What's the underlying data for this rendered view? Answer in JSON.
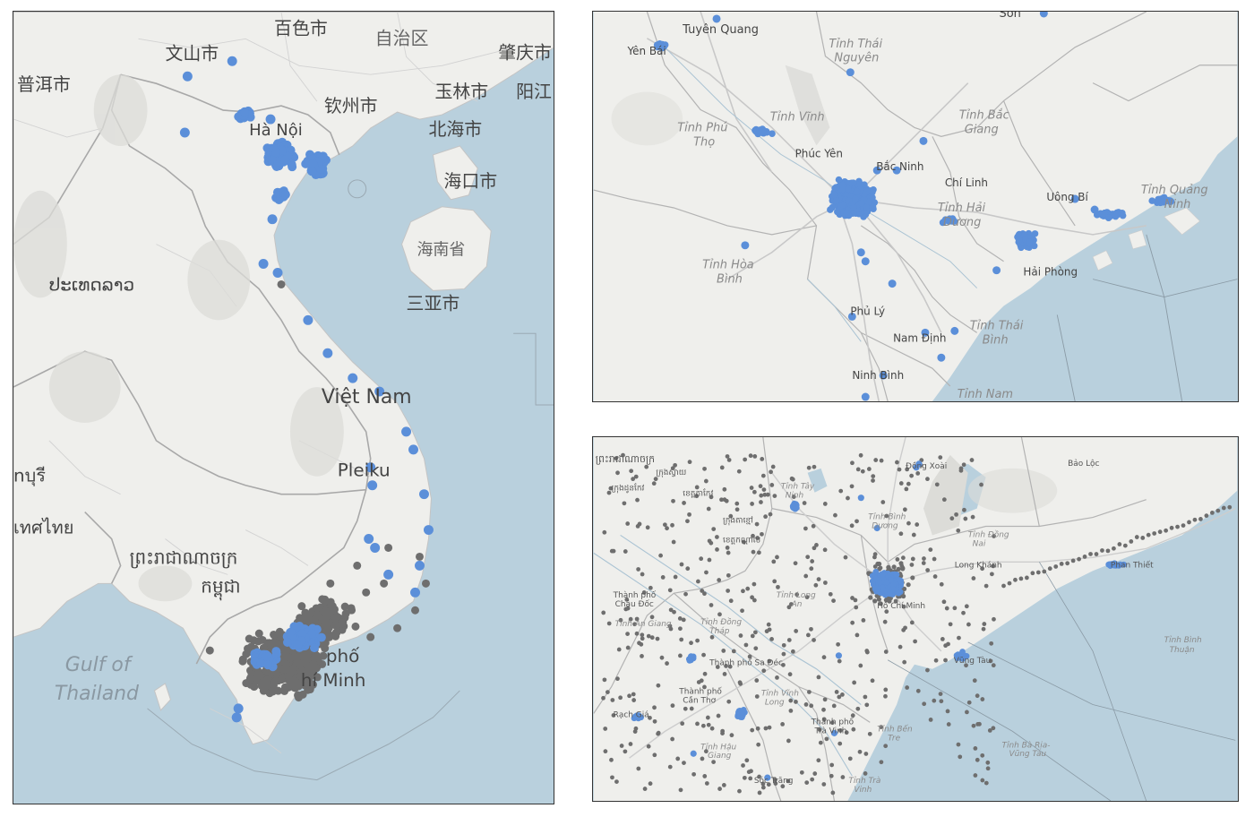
{
  "colors": {
    "water": "#b9d0dd",
    "land": "#efefec",
    "border": "#b8b8b8",
    "road": "#cfcfcf",
    "label": "#444444",
    "province_label": "#8a8a8a",
    "blue_points": "#5b8fd9",
    "grey_points": "#6e6e6e"
  },
  "panel_left": {
    "labels": {
      "baise": "百色市",
      "guangxi": "自治区",
      "wenshan": "文山市",
      "zhaoqing": "肇庆市",
      "puer": "普洱市",
      "hanoi": "Hà Nội",
      "qinzhou": "钦州市",
      "yulin": "玉林市",
      "yangjiang": "阳江",
      "beihai": "北海市",
      "haikou": "海口市",
      "hainan": "海南省",
      "sanya": "三亚市",
      "laos": "ປະເທດລາວ",
      "vietnam": "Việt Nam",
      "pleiku": "Pleiku",
      "buriram": "nบุรี",
      "thailand": "เทศไทย",
      "cambodia1": "ព្រះរាជាណាចក្រ",
      "cambodia2": "កម្ពុជា",
      "hcm_pho": "phố",
      "hcm_minh": "hí Minh",
      "gulf1": "Gulf of",
      "gulf2": "Thailand"
    }
  },
  "panel_top_right": {
    "labels": {
      "tuyen_quang": "Tuyên Quang",
      "son": "Sơn",
      "yen_bai": "Yên Bái",
      "thai_nguyen1": "Tỉnh Thái",
      "thai_nguyen2": "Nguyên",
      "phu_tho1": "Tỉnh Phú",
      "phu_tho2": "Thọ",
      "vinh_phuc": "Tỉnh Vĩnh",
      "phuc_yen": "Phúc Yên",
      "bac_ninh": "Bắc Ninh",
      "bac_giang1": "Tỉnh Bắc",
      "bac_giang2": "Giang",
      "chi_linh": "Chí Linh",
      "uong_bi": "Uông Bí",
      "quang_ninh1": "Tỉnh Quảng",
      "quang_ninh2": "Ninh",
      "hai_duong1": "Tỉnh Hải",
      "hai_duong2": "Dương",
      "hoa_binh1": "Tỉnh Hòa",
      "hoa_binh2": "Bình",
      "hai_phong": "Hải Phòng",
      "phu_ly": "Phủ Lý",
      "nam_dinh": "Nam Định",
      "thai_binh1": "Tỉnh Thái",
      "thai_binh2": "Bình",
      "ninh_binh": "Ninh Bình",
      "tinh_nam": "Tỉnh Nam"
    }
  },
  "panel_bottom_right": {
    "labels": {
      "khmer1": "ព្រះរាជាណាចក្រ",
      "khmer2": "ក្រុងស្វាយ",
      "khmer3": "ក្រុងដូនកែវ",
      "khmer4": "ខេត្តតាកែវ",
      "khmer5": "ក្រុងតាខ្មៅ",
      "khmer6": "ខេត្តកណ្ដាល",
      "dong_xoai": "Đồng Xoài",
      "bao_loc": "Bảo Lộc",
      "tay_ninh1": "Tỉnh Tây",
      "tay_ninh2": "Ninh",
      "binh_duong": "Tỉnh Bình",
      "binh_duong2": "Dương",
      "dong_nai": "Tỉnh Đồng",
      "dong_nai2": "Nai",
      "long_khanh": "Long Khánh",
      "phan_thiet": "Phan Thiết",
      "chau_doc1": "Thành phố",
      "chau_doc2": "Châu Đốc",
      "an_giang": "Tỉnh An Giang",
      "long_an1": "Tỉnh Long",
      "long_an2": "An",
      "dong_thap1": "Tỉnh Đồng",
      "dong_thap2": "Tháp",
      "ho_chi_minh": "Hồ Chí Minh",
      "binh_thuan1": "Tỉnh Bình",
      "binh_thuan2": "Thuận",
      "thanh_pho_sa_dec": "Thành phố Sa Đéc",
      "can_tho1": "Thành phố",
      "can_tho2": "Cần Thơ",
      "vinh_long1": "Tỉnh Vĩnh",
      "vinh_long2": "Long",
      "vung_tau": "Vũng Tàu",
      "rach_gia": "Rạch Giá",
      "tra_vinh1": "Thành phố",
      "tra_vinh2": "Trà Vinh",
      "ben_tre1": "Tỉnh Bến",
      "ben_tre2": "Tre",
      "ba_ria1": "Tỉnh Bà Rịa-",
      "ba_ria2": "Vũng Tàu",
      "hau_giang1": "Tỉnh Hậu",
      "hau_giang2": "Giang",
      "soc_trang": "Sóc Trăng",
      "tra_vinh_t1": "Tỉnh Trà",
      "tra_vinh_t2": "Vinh"
    }
  }
}
